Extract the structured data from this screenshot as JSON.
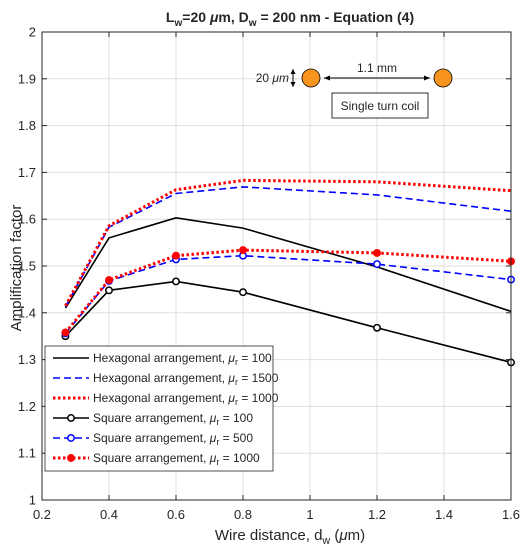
{
  "chart_data": {
    "type": "line",
    "title_parts": [
      {
        "t": "L",
        "style": "normal"
      },
      {
        "t": "w",
        "style": "sub"
      },
      {
        "t": "=20 ",
        "style": "normal"
      },
      {
        "t": "μ",
        "style": "italic"
      },
      {
        "t": "m, D",
        "style": "normal"
      },
      {
        "t": "w",
        "style": "sub"
      },
      {
        "t": " = 200 nm - Equation (4)",
        "style": "normal"
      }
    ],
    "xlabel_parts": [
      {
        "t": "Wire distance, d",
        "style": "normal"
      },
      {
        "t": "w",
        "style": "sub"
      },
      {
        "t": " (",
        "style": "normal"
      },
      {
        "t": "μ",
        "style": "italic"
      },
      {
        "t": "m)",
        "style": "normal"
      }
    ],
    "ylabel": "Amplification factor",
    "xlim": [
      0.2,
      1.6
    ],
    "ylim": [
      1,
      2
    ],
    "xticks": [
      0.2,
      0.4,
      0.6,
      0.8,
      1,
      1.2,
      1.4,
      1.6
    ],
    "xtick_labels": [
      "0.2",
      "0.4",
      "0.6",
      "0.8",
      "1",
      "1.2",
      "1.4",
      "1.6"
    ],
    "yticks": [
      1,
      1.1,
      1.2,
      1.3,
      1.4,
      1.5,
      1.6,
      1.7,
      1.8,
      1.9,
      2
    ],
    "ytick_labels": [
      "1",
      "1.1",
      "1.2",
      "1.3",
      "1.4",
      "1.5",
      "1.6",
      "1.7",
      "1.8",
      "1.9",
      "2"
    ],
    "grid": true,
    "legend_placement": "bottom-left",
    "series": [
      {
        "name_prefix": "Hexagonal arrangement, ",
        "name_value": "= 100",
        "color": "#000000",
        "line": "solid",
        "marker": false,
        "x": [
          0.27,
          0.4,
          0.6,
          0.8,
          1.2,
          1.6
        ],
        "y": [
          1.41,
          1.56,
          1.603,
          1.581,
          1.498,
          1.403
        ]
      },
      {
        "name_prefix": "Hexagonal arrangement, ",
        "name_value": "= 1500",
        "color": "#0000ff",
        "line": "dashed",
        "marker": false,
        "x": [
          0.27,
          0.4,
          0.6,
          0.8,
          1.2,
          1.6
        ],
        "y": [
          1.413,
          1.583,
          1.655,
          1.669,
          1.652,
          1.617
        ]
      },
      {
        "name_prefix": "Hexagonal arrangement, ",
        "name_value": "= 1000",
        "color": "#ff0000",
        "line": "dotted",
        "marker": false,
        "x": [
          0.27,
          0.4,
          0.6,
          0.8,
          1.2,
          1.6
        ],
        "y": [
          1.415,
          1.586,
          1.663,
          1.683,
          1.68,
          1.661
        ]
      },
      {
        "name_prefix": "Square arrangement, ",
        "name_value": "= 100",
        "color": "#000000",
        "line": "solid",
        "marker": true,
        "x": [
          0.27,
          0.4,
          0.6,
          0.8,
          1.2,
          1.6
        ],
        "y": [
          1.35,
          1.448,
          1.467,
          1.444,
          1.368,
          1.294
        ]
      },
      {
        "name_prefix": "Square arrangement, ",
        "name_value": "= 500",
        "color": "#0000ff",
        "line": "dashed",
        "marker": true,
        "x": [
          0.27,
          0.4,
          0.6,
          0.8,
          1.2,
          1.6
        ],
        "y": [
          1.356,
          1.468,
          1.514,
          1.522,
          1.504,
          1.471
        ]
      },
      {
        "name_prefix": "Square arrangement, ",
        "name_value": "= 1000",
        "color": "#ff0000",
        "line": "dotted",
        "marker": true,
        "x": [
          0.27,
          0.4,
          0.6,
          0.8,
          1.2,
          1.6
        ],
        "y": [
          1.358,
          1.47,
          1.522,
          1.534,
          1.528,
          1.51
        ]
      }
    ],
    "inset": {
      "height_label": "20 ",
      "height_unit": "μm",
      "distance_label": "1.1 mm",
      "caption": "Single turn coil",
      "wire_color": "#f7941d"
    }
  }
}
